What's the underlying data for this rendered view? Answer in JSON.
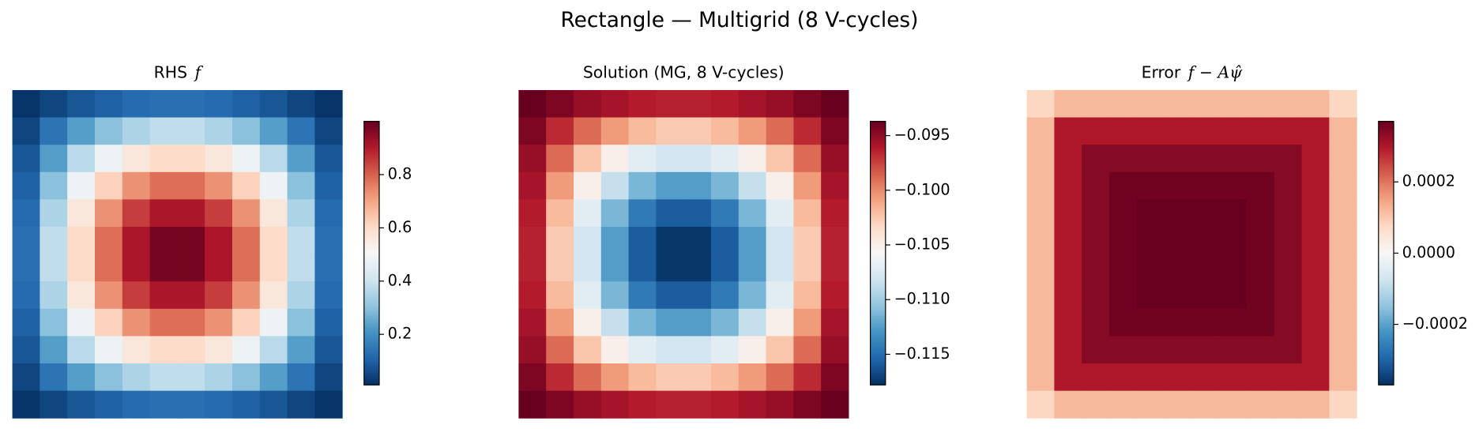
{
  "title": "Rectangle — Multigrid (8 V-cycles)",
  "chart_data": [
    {
      "type": "heatmap",
      "title": [
        "RHS",
        "f"
      ],
      "cmap": "RdBu_r",
      "clim": [
        0.01,
        1.0
      ],
      "ticks": [
        0.2,
        0.4,
        0.6,
        0.8
      ],
      "z": [
        [
          0.02,
          0.05,
          0.08,
          0.1,
          0.12,
          0.13,
          0.13,
          0.12,
          0.1,
          0.08,
          0.05,
          0.02
        ],
        [
          0.05,
          0.14,
          0.23,
          0.3,
          0.35,
          0.38,
          0.38,
          0.35,
          0.3,
          0.23,
          0.14,
          0.05
        ],
        [
          0.08,
          0.23,
          0.37,
          0.48,
          0.56,
          0.6,
          0.6,
          0.56,
          0.48,
          0.37,
          0.23,
          0.08
        ],
        [
          0.1,
          0.3,
          0.48,
          0.62,
          0.73,
          0.78,
          0.78,
          0.73,
          0.62,
          0.48,
          0.3,
          0.1
        ],
        [
          0.12,
          0.35,
          0.56,
          0.73,
          0.85,
          0.91,
          0.91,
          0.85,
          0.73,
          0.56,
          0.35,
          0.12
        ],
        [
          0.13,
          0.38,
          0.6,
          0.78,
          0.91,
          0.98,
          0.98,
          0.91,
          0.78,
          0.6,
          0.38,
          0.13
        ],
        [
          0.13,
          0.38,
          0.6,
          0.78,
          0.91,
          0.98,
          0.98,
          0.91,
          0.78,
          0.6,
          0.38,
          0.13
        ],
        [
          0.12,
          0.35,
          0.56,
          0.73,
          0.85,
          0.91,
          0.91,
          0.85,
          0.73,
          0.56,
          0.35,
          0.12
        ],
        [
          0.1,
          0.3,
          0.48,
          0.62,
          0.73,
          0.78,
          0.78,
          0.73,
          0.62,
          0.48,
          0.3,
          0.1
        ],
        [
          0.08,
          0.23,
          0.37,
          0.48,
          0.56,
          0.6,
          0.6,
          0.56,
          0.48,
          0.37,
          0.23,
          0.08
        ],
        [
          0.05,
          0.14,
          0.23,
          0.3,
          0.35,
          0.38,
          0.38,
          0.35,
          0.3,
          0.23,
          0.14,
          0.05
        ],
        [
          0.02,
          0.05,
          0.08,
          0.1,
          0.12,
          0.13,
          0.13,
          0.12,
          0.1,
          0.08,
          0.05,
          0.02
        ]
      ]
    },
    {
      "type": "heatmap",
      "title": [
        "Solution  (MG, 8 V-cycles)"
      ],
      "cmap": "RdBu_r",
      "clim": [
        -0.1178,
        -0.0937
      ],
      "ticks": [
        {
          "value": -0.095,
          "label": "−0.095"
        },
        {
          "value": -0.1,
          "label": "−0.100"
        },
        {
          "value": -0.105,
          "label": "−0.105"
        },
        {
          "value": -0.11,
          "label": "−0.110"
        },
        {
          "value": -0.115,
          "label": "−0.115"
        }
      ],
      "z": [
        [
          -0.0937,
          -0.0944,
          -0.0952,
          -0.0957,
          -0.0962,
          -0.0964,
          -0.0964,
          -0.0962,
          -0.0957,
          -0.0952,
          -0.0944,
          -0.0937
        ],
        [
          -0.0944,
          -0.0967,
          -0.0989,
          -0.1006,
          -0.1019,
          -0.1026,
          -0.1026,
          -0.1019,
          -0.1006,
          -0.0989,
          -0.0967,
          -0.0944
        ],
        [
          -0.0952,
          -0.0989,
          -0.1024,
          -0.1051,
          -0.1071,
          -0.1081,
          -0.1081,
          -0.1071,
          -0.1051,
          -0.1024,
          -0.0989,
          -0.0952
        ],
        [
          -0.0957,
          -0.1006,
          -0.1051,
          -0.1086,
          -0.1113,
          -0.1125,
          -0.1125,
          -0.1113,
          -0.1086,
          -0.1051,
          -0.1006,
          -0.0957
        ],
        [
          -0.0962,
          -0.1019,
          -0.1071,
          -0.1113,
          -0.1143,
          -0.1158,
          -0.1158,
          -0.1143,
          -0.1113,
          -0.1071,
          -0.1019,
          -0.0962
        ],
        [
          -0.0964,
          -0.1026,
          -0.1081,
          -0.1125,
          -0.1158,
          -0.1175,
          -0.1175,
          -0.1158,
          -0.1125,
          -0.1081,
          -0.1026,
          -0.0964
        ],
        [
          -0.0964,
          -0.1026,
          -0.1081,
          -0.1125,
          -0.1158,
          -0.1175,
          -0.1175,
          -0.1158,
          -0.1125,
          -0.1081,
          -0.1026,
          -0.0964
        ],
        [
          -0.0962,
          -0.1019,
          -0.1071,
          -0.1113,
          -0.1143,
          -0.1158,
          -0.1158,
          -0.1143,
          -0.1113,
          -0.1071,
          -0.1019,
          -0.0962
        ],
        [
          -0.0957,
          -0.1006,
          -0.1051,
          -0.1086,
          -0.1113,
          -0.1125,
          -0.1125,
          -0.1113,
          -0.1086,
          -0.1051,
          -0.1006,
          -0.0957
        ],
        [
          -0.0952,
          -0.0989,
          -0.1024,
          -0.1051,
          -0.1071,
          -0.1081,
          -0.1081,
          -0.1071,
          -0.1051,
          -0.1024,
          -0.0989,
          -0.0952
        ],
        [
          -0.0944,
          -0.0967,
          -0.0989,
          -0.1006,
          -0.1019,
          -0.1026,
          -0.1026,
          -0.1019,
          -0.1006,
          -0.0989,
          -0.0967,
          -0.0944
        ],
        [
          -0.0937,
          -0.0944,
          -0.0952,
          -0.0957,
          -0.0962,
          -0.0964,
          -0.0964,
          -0.0962,
          -0.0957,
          -0.0952,
          -0.0944,
          -0.0937
        ]
      ]
    },
    {
      "type": "heatmap",
      "title": [
        "Error",
        "f − Aψ̂"
      ],
      "cmap": "RdBu_r",
      "clim": [
        -0.00037,
        0.00037
      ],
      "ticks": [
        0.0002,
        {
          "value": 0,
          "label": "0.0000"
        },
        {
          "value": -0.0002,
          "label": "−0.0002"
        }
      ],
      "z": [
        [
          8e-05,
          0.00012,
          0.00012,
          0.00012,
          0.00012,
          0.00012,
          0.00012,
          0.00012,
          0.00012,
          0.00012,
          0.00012,
          8e-05
        ],
        [
          0.00012,
          0.0003,
          0.0003,
          0.0003,
          0.0003,
          0.0003,
          0.0003,
          0.0003,
          0.0003,
          0.0003,
          0.0003,
          0.00012
        ],
        [
          0.00012,
          0.0003,
          0.00034,
          0.00034,
          0.00034,
          0.00034,
          0.00034,
          0.00034,
          0.00034,
          0.00034,
          0.0003,
          0.00012
        ],
        [
          0.00012,
          0.0003,
          0.00034,
          0.00036,
          0.00036,
          0.00036,
          0.00036,
          0.00036,
          0.00036,
          0.00034,
          0.0003,
          0.00012
        ],
        [
          0.00012,
          0.0003,
          0.00034,
          0.00036,
          0.00037,
          0.00037,
          0.00037,
          0.00037,
          0.00036,
          0.00034,
          0.0003,
          0.00012
        ],
        [
          0.00012,
          0.0003,
          0.00034,
          0.00036,
          0.00037,
          0.00037,
          0.00037,
          0.00037,
          0.00036,
          0.00034,
          0.0003,
          0.00012
        ],
        [
          0.00012,
          0.0003,
          0.00034,
          0.00036,
          0.00037,
          0.00037,
          0.00037,
          0.00037,
          0.00036,
          0.00034,
          0.0003,
          0.00012
        ],
        [
          0.00012,
          0.0003,
          0.00034,
          0.00036,
          0.00037,
          0.00037,
          0.00037,
          0.00037,
          0.00036,
          0.00034,
          0.0003,
          0.00012
        ],
        [
          0.00012,
          0.0003,
          0.00034,
          0.00036,
          0.00036,
          0.00036,
          0.00036,
          0.00036,
          0.00036,
          0.00034,
          0.0003,
          0.00012
        ],
        [
          0.00012,
          0.0003,
          0.00034,
          0.00034,
          0.00034,
          0.00034,
          0.00034,
          0.00034,
          0.00034,
          0.00034,
          0.0003,
          0.00012
        ],
        [
          0.00012,
          0.0003,
          0.0003,
          0.0003,
          0.0003,
          0.0003,
          0.0003,
          0.0003,
          0.0003,
          0.0003,
          0.0003,
          0.00012
        ],
        [
          8e-05,
          0.00012,
          0.00012,
          0.00012,
          0.00012,
          0.00012,
          0.00012,
          0.00012,
          0.00012,
          0.00012,
          0.00012,
          8e-05
        ]
      ]
    }
  ]
}
